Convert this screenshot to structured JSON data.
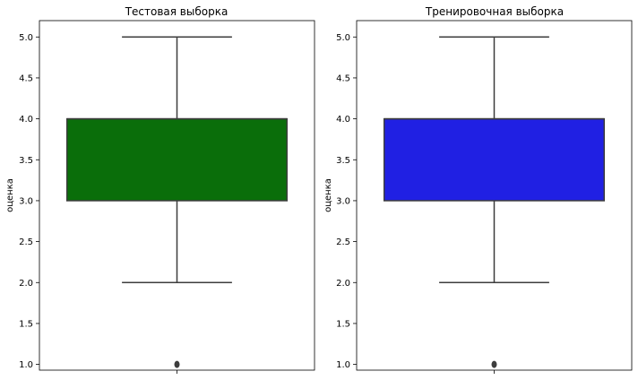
{
  "colors": {
    "edge": "#3d3d3d",
    "frame": "#000000",
    "background": "#ffffff"
  },
  "chart_data": [
    {
      "type": "boxplot",
      "title": "Тестовая выборка",
      "xlabel": "",
      "ylabel": "оценка",
      "ylim": [
        0.93,
        5.2
      ],
      "yticks": [
        "1.0",
        "1.5",
        "2.0",
        "2.5",
        "3.0",
        "3.5",
        "4.0",
        "4.5",
        "5.0"
      ],
      "box_color": "#0a6e0a",
      "box": {
        "whisker_low": 2.0,
        "q1": 3.0,
        "median": 4.0,
        "q3": 4.0,
        "whisker_high": 5.0
      },
      "outliers": [
        1.0
      ],
      "grid": false,
      "legend": "none"
    },
    {
      "type": "boxplot",
      "title": "Тренировочная выборка",
      "xlabel": "",
      "ylabel": "оценка",
      "ylim": [
        0.93,
        5.2
      ],
      "yticks": [
        "1.0",
        "1.5",
        "2.0",
        "2.5",
        "3.0",
        "3.5",
        "4.0",
        "4.5",
        "5.0"
      ],
      "box_color": "#2020e3",
      "box": {
        "whisker_low": 2.0,
        "q1": 3.0,
        "median": 4.0,
        "q3": 4.0,
        "whisker_high": 5.0
      },
      "outliers": [
        1.0
      ],
      "grid": false,
      "legend": "none"
    }
  ]
}
